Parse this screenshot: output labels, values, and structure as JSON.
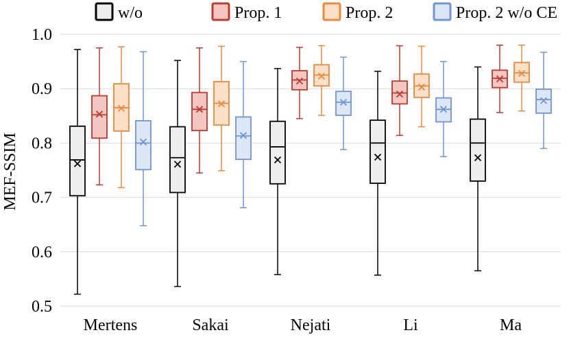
{
  "chart_data": {
    "type": "box",
    "title": "",
    "xlabel": "",
    "ylabel": "MEF-SSIM",
    "ylim": [
      0.5,
      1.0
    ],
    "yticks": [
      "0.5",
      "0.6",
      "0.7",
      "0.8",
      "0.9",
      "1.0"
    ],
    "ytick_values": [
      0.5,
      0.6,
      0.7,
      0.8,
      0.9,
      1.0
    ],
    "grid": true,
    "legend_position": "top",
    "categories": [
      "Mertens",
      "Sakai",
      "Nejati",
      "Li",
      "Ma"
    ],
    "series": [
      {
        "name": "w/o",
        "stroke": "#000000",
        "fill": "#eeeeee",
        "boxes": [
          {
            "min": 0.522,
            "q1": 0.703,
            "median": 0.769,
            "q3": 0.831,
            "max": 0.972,
            "mean": 0.762
          },
          {
            "min": 0.536,
            "q1": 0.709,
            "median": 0.773,
            "q3": 0.83,
            "max": 0.952,
            "mean": 0.761
          },
          {
            "min": 0.558,
            "q1": 0.725,
            "median": 0.793,
            "q3": 0.84,
            "max": 0.937,
            "mean": 0.769
          },
          {
            "min": 0.557,
            "q1": 0.726,
            "median": 0.8,
            "q3": 0.842,
            "max": 0.932,
            "mean": 0.774
          },
          {
            "min": 0.565,
            "q1": 0.73,
            "median": 0.8,
            "q3": 0.844,
            "max": 0.94,
            "mean": 0.773
          }
        ]
      },
      {
        "name": "Prop. 1",
        "stroke": "#c0392b",
        "fill": "#f4c7c3",
        "boxes": [
          {
            "min": 0.723,
            "q1": 0.809,
            "median": 0.852,
            "q3": 0.887,
            "max": 0.975,
            "mean": 0.853
          },
          {
            "min": 0.745,
            "q1": 0.823,
            "median": 0.862,
            "q3": 0.893,
            "max": 0.975,
            "mean": 0.862
          },
          {
            "min": 0.845,
            "q1": 0.898,
            "median": 0.916,
            "q3": 0.933,
            "max": 0.976,
            "mean": 0.914
          },
          {
            "min": 0.814,
            "q1": 0.872,
            "median": 0.892,
            "q3": 0.914,
            "max": 0.979,
            "mean": 0.89
          },
          {
            "min": 0.856,
            "q1": 0.902,
            "median": 0.919,
            "q3": 0.934,
            "max": 0.98,
            "mean": 0.918
          }
        ]
      },
      {
        "name": "Prop. 2",
        "stroke": "#f0873a",
        "fill": "#fde0c8",
        "boxes": [
          {
            "min": 0.718,
            "q1": 0.822,
            "median": 0.865,
            "q3": 0.909,
            "max": 0.977,
            "mean": 0.864
          },
          {
            "min": 0.749,
            "q1": 0.833,
            "median": 0.873,
            "q3": 0.913,
            "max": 0.978,
            "mean": 0.872
          },
          {
            "min": 0.851,
            "q1": 0.905,
            "median": 0.925,
            "q3": 0.944,
            "max": 0.979,
            "mean": 0.923
          },
          {
            "min": 0.83,
            "q1": 0.884,
            "median": 0.905,
            "q3": 0.927,
            "max": 0.978,
            "mean": 0.903
          },
          {
            "min": 0.859,
            "q1": 0.912,
            "median": 0.929,
            "q3": 0.948,
            "max": 0.98,
            "mean": 0.928
          }
        ]
      },
      {
        "name": "Prop. 2 w/o CE",
        "stroke": "#6f95d9",
        "fill": "#dce6f5",
        "boxes": [
          {
            "min": 0.648,
            "q1": 0.751,
            "median": 0.8,
            "q3": 0.841,
            "max": 0.968,
            "mean": 0.802
          },
          {
            "min": 0.681,
            "q1": 0.77,
            "median": 0.813,
            "q3": 0.848,
            "max": 0.95,
            "mean": 0.814
          },
          {
            "min": 0.788,
            "q1": 0.851,
            "median": 0.875,
            "q3": 0.895,
            "max": 0.958,
            "mean": 0.875
          },
          {
            "min": 0.775,
            "q1": 0.839,
            "median": 0.862,
            "q3": 0.883,
            "max": 0.95,
            "mean": 0.862
          },
          {
            "min": 0.79,
            "q1": 0.855,
            "median": 0.88,
            "q3": 0.899,
            "max": 0.967,
            "mean": 0.878
          }
        ]
      }
    ]
  }
}
